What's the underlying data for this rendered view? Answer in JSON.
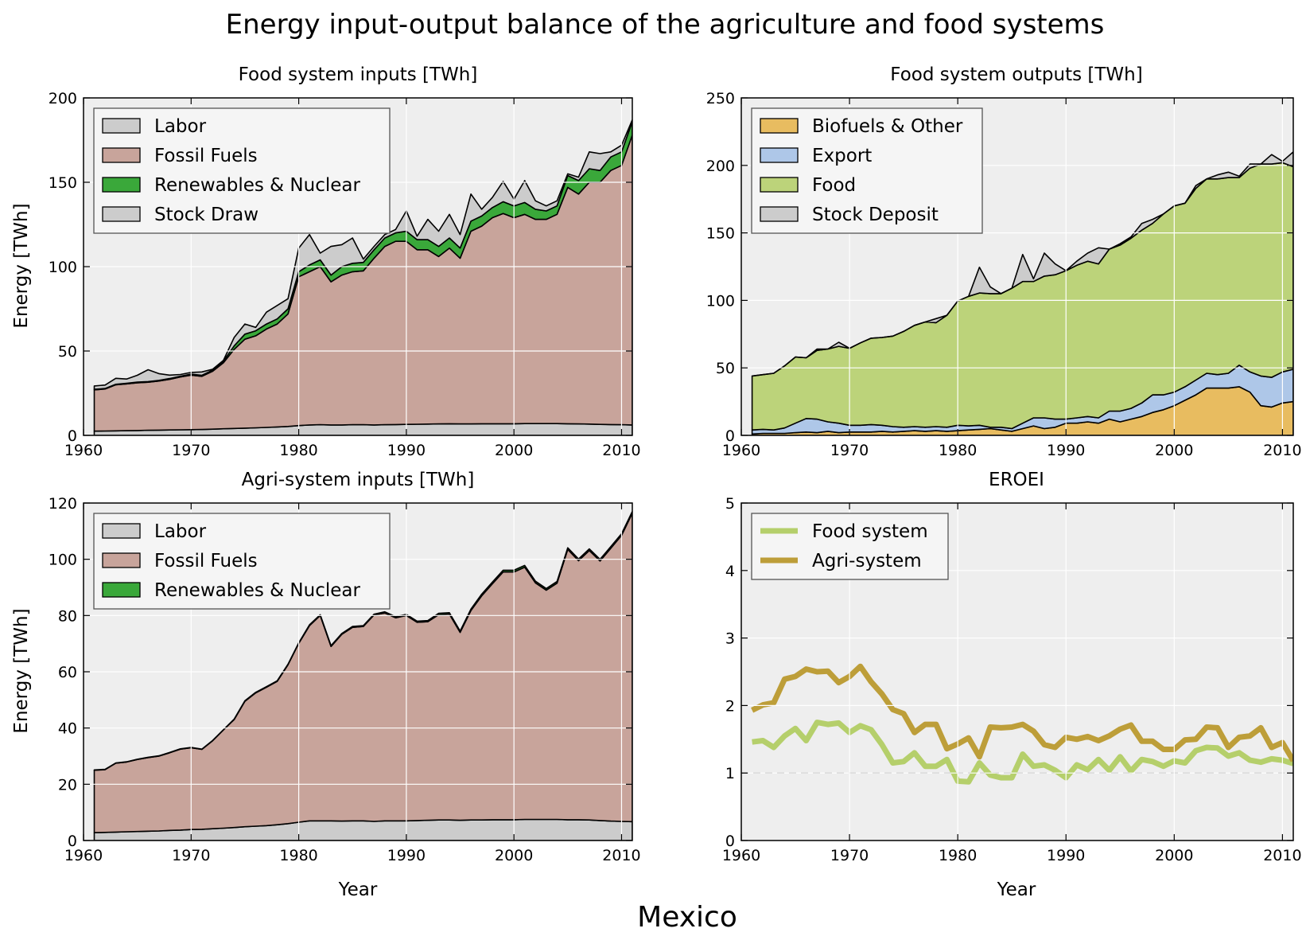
{
  "figure": {
    "title": "Energy input-output balance of the agriculture and food systems",
    "country": "Mexico"
  },
  "chart_data": [
    {
      "type": "area",
      "title": "Food system inputs [TWh]",
      "ylabel": "Energy [TWh]",
      "xlabel": "",
      "xlim": [
        1960,
        2011
      ],
      "ylim": [
        0,
        200
      ],
      "xticks": [
        1960,
        1970,
        1980,
        1990,
        2000,
        2010
      ],
      "yticks": [
        0,
        50,
        100,
        150,
        200
      ],
      "grid": true,
      "legend_position": "upper-left",
      "stacked": true,
      "x": [
        1961,
        1962,
        1963,
        1964,
        1965,
        1966,
        1967,
        1968,
        1969,
        1970,
        1971,
        1972,
        1973,
        1974,
        1975,
        1976,
        1977,
        1978,
        1979,
        1980,
        1981,
        1982,
        1983,
        1984,
        1985,
        1986,
        1987,
        1988,
        1989,
        1990,
        1991,
        1992,
        1993,
        1994,
        1995,
        1996,
        1997,
        1998,
        1999,
        2000,
        2001,
        2002,
        2003,
        2004,
        2005,
        2006,
        2007,
        2008,
        2009,
        2010,
        2011
      ],
      "series": [
        {
          "name": "Labor",
          "color": "#cccccc",
          "values": [
            2.5,
            2.6,
            2.7,
            2.8,
            2.9,
            3.0,
            3.1,
            3.2,
            3.3,
            3.4,
            3.5,
            3.7,
            3.9,
            4.1,
            4.3,
            4.5,
            4.7,
            5.0,
            5.3,
            5.8,
            6.2,
            6.3,
            6.2,
            6.2,
            6.3,
            6.3,
            6.2,
            6.3,
            6.4,
            6.5,
            6.6,
            6.7,
            6.8,
            6.9,
            6.8,
            6.8,
            6.9,
            6.9,
            6.9,
            6.9,
            7.0,
            7.0,
            7.0,
            7.0,
            6.9,
            6.8,
            6.7,
            6.5,
            6.4,
            6.3,
            6.2
          ]
        },
        {
          "name": "Fossil Fuels",
          "color": "#c8a49b",
          "values": [
            24.5,
            24.9,
            27.3,
            27.7,
            28.3,
            28.5,
            29.1,
            30.0,
            31.3,
            32.3,
            31.5,
            34.3,
            39.1,
            46.9,
            52.7,
            54.5,
            58.3,
            61.0,
            66.7,
            88.2,
            90.8,
            93.7,
            84.8,
            88.8,
            90.7,
            91.2,
            98.8,
            105.7,
            108.6,
            108.5,
            103.4,
            103.3,
            99.2,
            104.1,
            98.2,
            114.2,
            117.1,
            122.1,
            124.6,
            122.1,
            124.0,
            121.0,
            121.0,
            124.0,
            140.1,
            136.2,
            143.3,
            143.5,
            150.6,
            153.7,
            171.8
          ]
        },
        {
          "name": "Renewables & Nuclear",
          "color": "#3aa83a",
          "values": [
            0.3,
            0.3,
            0.3,
            0.4,
            0.4,
            0.4,
            0.4,
            0.5,
            0.5,
            0.6,
            0.6,
            0.7,
            1.0,
            2.0,
            3.0,
            3.0,
            3.0,
            3.0,
            3.0,
            3.0,
            4.0,
            4.0,
            4.0,
            5.0,
            5.0,
            5.0,
            5.0,
            5.0,
            5.0,
            6.0,
            6.0,
            6.0,
            6.0,
            6.0,
            6.0,
            6.0,
            6.0,
            6.0,
            7.0,
            7.0,
            7.0,
            6.0,
            5.0,
            5.0,
            7.0,
            8.0,
            8.0,
            7.0,
            8.0,
            8.0,
            8.0
          ]
        },
        {
          "name": "Stock Draw",
          "color": "#cccccc",
          "values": [
            2.0,
            2.0,
            3.5,
            2.5,
            4.0,
            7.0,
            4.0,
            2.0,
            1.0,
            1.0,
            2.0,
            0.5,
            0.5,
            5.0,
            6.0,
            2.0,
            7.0,
            8.0,
            6.0,
            14.0,
            18.0,
            4.0,
            17.0,
            13.0,
            15.0,
            2.0,
            2.0,
            2.0,
            2.0,
            12.0,
            2.0,
            12.0,
            9.0,
            14.0,
            8.0,
            16.0,
            4.0,
            6.0,
            12.0,
            4.0,
            13.0,
            5.0,
            3.0,
            3.0,
            1.0,
            2.0,
            10.0,
            10.0,
            3.0,
            4.0,
            1.0
          ]
        }
      ]
    },
    {
      "type": "area",
      "title": "Food system outputs [TWh]",
      "ylabel": "",
      "xlabel": "",
      "xlim": [
        1960,
        2011
      ],
      "ylim": [
        0,
        250
      ],
      "xticks": [
        1960,
        1970,
        1980,
        1990,
        2000,
        2010
      ],
      "yticks": [
        0,
        50,
        100,
        150,
        200,
        250
      ],
      "grid": true,
      "legend_position": "upper-left",
      "stacked": true,
      "x": [
        1961,
        1962,
        1963,
        1964,
        1965,
        1966,
        1967,
        1968,
        1969,
        1970,
        1971,
        1972,
        1973,
        1974,
        1975,
        1976,
        1977,
        1978,
        1979,
        1980,
        1981,
        1982,
        1983,
        1984,
        1985,
        1986,
        1987,
        1988,
        1989,
        1990,
        1991,
        1992,
        1993,
        1994,
        1995,
        1996,
        1997,
        1998,
        1999,
        2000,
        2001,
        2002,
        2003,
        2004,
        2005,
        2006,
        2007,
        2008,
        2009,
        2010,
        2011
      ],
      "series": [
        {
          "name": "Biofuels & Other",
          "color": "#e8bc60",
          "values": [
            1,
            1.5,
            1.5,
            1.5,
            2,
            2.5,
            2,
            3,
            2,
            2.5,
            2.5,
            2.5,
            3,
            2.5,
            3,
            3.5,
            3,
            3.5,
            3,
            3.5,
            4,
            4.5,
            5,
            4,
            3,
            5,
            7,
            5,
            6,
            9,
            9,
            10,
            9,
            12,
            10,
            12,
            14,
            17,
            19,
            22,
            26,
            30,
            35,
            35,
            35,
            36,
            32,
            22,
            21,
            24,
            25
          ]
        },
        {
          "name": "Export",
          "color": "#aec7e8",
          "values": [
            3,
            3,
            2.5,
            4,
            7,
            10,
            10,
            7,
            7,
            5,
            5,
            5.5,
            4.5,
            4,
            3,
            3,
            3,
            3,
            3,
            4,
            3,
            3,
            1,
            2,
            2,
            4,
            6,
            8,
            6,
            3,
            4,
            4,
            4,
            6,
            8,
            8,
            10,
            13,
            11,
            10,
            10,
            11,
            11,
            10,
            11,
            16,
            15,
            22,
            22,
            23,
            24
          ]
        },
        {
          "name": "Food",
          "color": "#bcd37a",
          "values": [
            40,
            40.5,
            42,
            46,
            49,
            45,
            51,
            54,
            57,
            57,
            61,
            64,
            65,
            67,
            71,
            75,
            78,
            77,
            83,
            92,
            96,
            98,
            99,
            99,
            104,
            105,
            101,
            105,
            107,
            110,
            113,
            115,
            114,
            120,
            123,
            126,
            128,
            127,
            134,
            138,
            136,
            142,
            144,
            145,
            145,
            139,
            151,
            157,
            158,
            155,
            150
          ]
        },
        {
          "name": "Stock Deposit",
          "color": "#cccccc",
          "values": [
            0,
            0,
            0,
            0,
            0,
            0,
            1,
            0,
            3,
            0,
            0,
            0,
            0,
            0,
            0,
            0,
            0,
            3,
            0,
            0,
            0,
            19,
            5,
            0,
            0,
            20,
            2,
            17,
            8,
            0,
            3,
            6,
            12,
            0,
            1,
            1,
            5,
            3,
            0,
            0,
            0,
            2,
            0,
            3,
            4,
            1,
            3,
            0,
            7,
            1,
            11
          ]
        }
      ]
    },
    {
      "type": "area",
      "title": "Agri-system inputs [TWh]",
      "ylabel": "Energy [TWh]",
      "xlabel": "Year",
      "xlim": [
        1960,
        2011
      ],
      "ylim": [
        0,
        120
      ],
      "xticks": [
        1960,
        1970,
        1980,
        1990,
        2000,
        2010
      ],
      "yticks": [
        0,
        20,
        40,
        60,
        80,
        100,
        120
      ],
      "grid": true,
      "legend_position": "upper-left",
      "stacked": true,
      "x": [
        1961,
        1962,
        1963,
        1964,
        1965,
        1966,
        1967,
        1968,
        1969,
        1970,
        1971,
        1972,
        1973,
        1974,
        1975,
        1976,
        1977,
        1978,
        1979,
        1980,
        1981,
        1982,
        1983,
        1984,
        1985,
        1986,
        1987,
        1988,
        1989,
        1990,
        1991,
        1992,
        1993,
        1994,
        1995,
        1996,
        1997,
        1998,
        1999,
        2000,
        2001,
        2002,
        2003,
        2004,
        2005,
        2006,
        2007,
        2008,
        2009,
        2010,
        2011
      ],
      "series": [
        {
          "name": "Labor",
          "color": "#cccccc",
          "values": [
            2.8,
            2.9,
            3.0,
            3.1,
            3.2,
            3.3,
            3.4,
            3.6,
            3.7,
            3.9,
            4.0,
            4.2,
            4.4,
            4.6,
            4.9,
            5.1,
            5.3,
            5.6,
            6.0,
            6.5,
            7.0,
            7.0,
            7.0,
            6.9,
            7.0,
            7.0,
            6.8,
            7.0,
            7.0,
            7.0,
            7.1,
            7.2,
            7.3,
            7.3,
            7.2,
            7.3,
            7.3,
            7.4,
            7.4,
            7.4,
            7.5,
            7.5,
            7.5,
            7.5,
            7.4,
            7.4,
            7.3,
            7.1,
            6.9,
            6.8,
            6.7
          ]
        },
        {
          "name": "Fossil Fuels",
          "color": "#c8a49b",
          "values": [
            22.2,
            22.3,
            24.5,
            24.8,
            25.6,
            26.2,
            26.6,
            27.6,
            28.8,
            29.1,
            28.4,
            31.3,
            34.9,
            38.4,
            44.6,
            47.4,
            49.2,
            51.0,
            56.5,
            63.6,
            69.4,
            73.0,
            62.0,
            66.4,
            68.8,
            69.1,
            73.4,
            73.9,
            72.2,
            73.0,
            70.5,
            70.6,
            73.0,
            73.2,
            66.8,
            74.5,
            79.7,
            83.9,
            88.1,
            88.1,
            89.7,
            84.1,
            81.5,
            84.0,
            96.1,
            92.1,
            95.8,
            92.3,
            97.0,
            101.7,
            109.7
          ]
        },
        {
          "name": "Renewables & Nuclear",
          "color": "#3aa83a",
          "values": [
            0.1,
            0.1,
            0.1,
            0.1,
            0.1,
            0.1,
            0.1,
            0.1,
            0.1,
            0.1,
            0.1,
            0.1,
            0.1,
            0.2,
            0.2,
            0.2,
            0.2,
            0.2,
            0.2,
            0.2,
            0.3,
            0.3,
            0.3,
            0.3,
            0.3,
            0.3,
            0.3,
            0.4,
            0.4,
            0.4,
            0.4,
            0.4,
            0.5,
            0.5,
            0.5,
            0.5,
            0.6,
            0.6,
            0.6,
            0.6,
            0.6,
            0.6,
            0.6,
            0.6,
            0.6,
            0.6,
            0.6,
            0.6,
            0.6,
            0.6,
            0.6
          ]
        }
      ]
    },
    {
      "type": "line",
      "title": "EROEI",
      "ylabel": "",
      "xlabel": "Year",
      "xlim": [
        1960,
        2011
      ],
      "ylim": [
        0,
        5
      ],
      "xticks": [
        1960,
        1970,
        1980,
        1990,
        2000,
        2010
      ],
      "yticks": [
        0,
        1,
        2,
        3,
        4,
        5
      ],
      "grid": true,
      "legend_position": "upper-left",
      "reference_line": 1,
      "x": [
        1961,
        1962,
        1963,
        1964,
        1965,
        1966,
        1967,
        1968,
        1969,
        1970,
        1971,
        1972,
        1973,
        1974,
        1975,
        1976,
        1977,
        1978,
        1979,
        1980,
        1981,
        1982,
        1983,
        1984,
        1985,
        1986,
        1987,
        1988,
        1989,
        1990,
        1991,
        1992,
        1993,
        1994,
        1995,
        1996,
        1997,
        1998,
        1999,
        2000,
        2001,
        2002,
        2003,
        2004,
        2005,
        2006,
        2007,
        2008,
        2009,
        2010,
        2011
      ],
      "series": [
        {
          "name": "Food system",
          "color": "#b5cf6b",
          "values": [
            1.46,
            1.48,
            1.38,
            1.55,
            1.66,
            1.48,
            1.75,
            1.72,
            1.74,
            1.6,
            1.7,
            1.64,
            1.42,
            1.15,
            1.17,
            1.3,
            1.1,
            1.1,
            1.2,
            0.88,
            0.87,
            1.15,
            0.97,
            0.93,
            0.93,
            1.28,
            1.1,
            1.12,
            1.04,
            0.93,
            1.12,
            1.05,
            1.2,
            1.04,
            1.24,
            1.03,
            1.2,
            1.17,
            1.1,
            1.18,
            1.15,
            1.33,
            1.38,
            1.37,
            1.25,
            1.3,
            1.19,
            1.16,
            1.21,
            1.19,
            1.14
          ]
        },
        {
          "name": "Agri-system",
          "color": "#bd9e39",
          "values": [
            1.93,
            2.01,
            2.04,
            2.39,
            2.43,
            2.54,
            2.5,
            2.51,
            2.34,
            2.43,
            2.58,
            2.35,
            2.17,
            1.94,
            1.88,
            1.6,
            1.72,
            1.72,
            1.36,
            1.43,
            1.52,
            1.24,
            1.68,
            1.67,
            1.68,
            1.72,
            1.62,
            1.42,
            1.38,
            1.53,
            1.5,
            1.54,
            1.48,
            1.55,
            1.65,
            1.71,
            1.47,
            1.47,
            1.35,
            1.35,
            1.49,
            1.5,
            1.68,
            1.67,
            1.38,
            1.53,
            1.55,
            1.67,
            1.38,
            1.45,
            1.18
          ]
        }
      ]
    }
  ]
}
